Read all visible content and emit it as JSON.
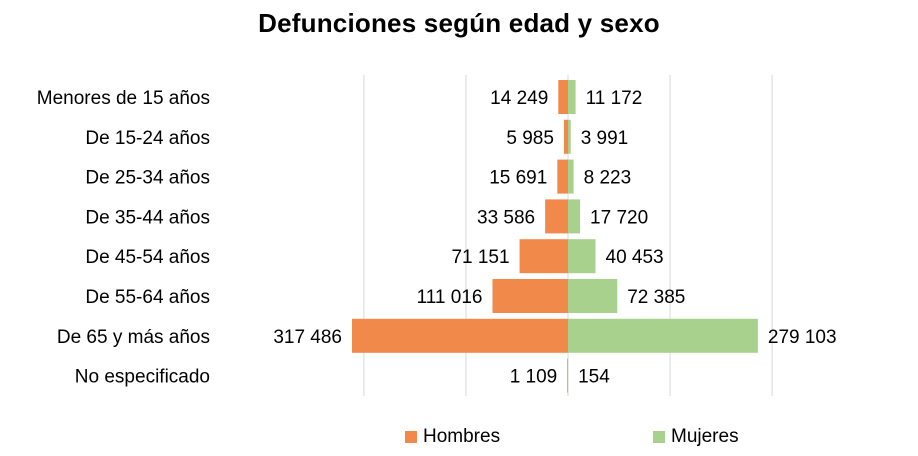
{
  "chart_data": {
    "type": "bar",
    "orientation": "horizontal",
    "layout": "population-pyramid",
    "title": "Defunciones según edad y sexo",
    "xlabel": "",
    "ylabel": "",
    "grid": true,
    "legend_position": "bottom",
    "categories": [
      "Menores de 15 años",
      "De 15-24 años",
      "De 25-34 años",
      "De 35-44 años",
      "De 45-54 años",
      "De 55-64 años",
      "De 65 y más años",
      "No especificado"
    ],
    "series": [
      {
        "name": "Hombres",
        "color": "#F0894A",
        "side": "left",
        "values": [
          14249,
          5985,
          15691,
          33586,
          71151,
          111016,
          317486,
          1109
        ],
        "labels": [
          "14 249",
          "5 985",
          "15 691",
          "33 586",
          "71 151",
          "111 016",
          "317 486",
          "1 109"
        ]
      },
      {
        "name": "Mujeres",
        "color": "#A9D18E",
        "side": "right",
        "values": [
          11172,
          3991,
          8223,
          17720,
          40453,
          72385,
          279103,
          154
        ],
        "labels": [
          "11 172",
          "3 991",
          "8 223",
          "17 720",
          "40 453",
          "72 385",
          "279 103",
          "154"
        ]
      }
    ],
    "xlim": [
      -400000,
      400000
    ],
    "gridline_values": [
      -300000,
      -150000,
      0,
      150000,
      300000
    ]
  }
}
